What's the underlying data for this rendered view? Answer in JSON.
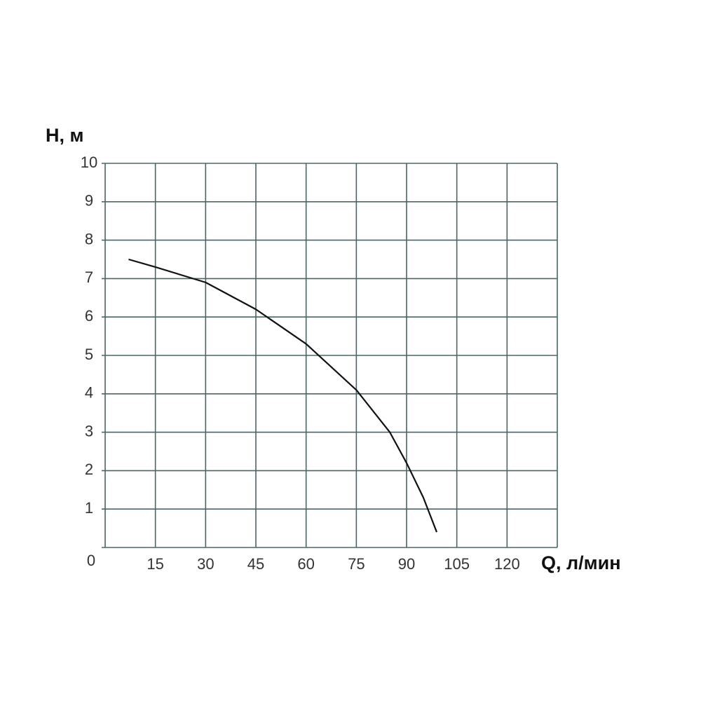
{
  "chart_data": {
    "type": "line",
    "y_label": "H, м",
    "x_label": "Q, л/мин",
    "x": [
      7,
      15,
      30,
      45,
      60,
      75,
      85,
      90,
      95,
      99
    ],
    "series": [
      {
        "color": "#111111",
        "values": [
          7.5,
          7.3,
          6.9,
          6.2,
          5.3,
          4.1,
          3.0,
          2.2,
          1.3,
          0.4
        ]
      }
    ],
    "xlim": [
      0,
      135
    ],
    "ylim": [
      0,
      10
    ],
    "xticks": [
      15,
      30,
      45,
      60,
      75,
      90,
      105,
      120
    ],
    "yticks": [
      0,
      1,
      2,
      3,
      4,
      5,
      6,
      7,
      8,
      9,
      10
    ],
    "grid": true,
    "grid_color": "#4a6666"
  }
}
